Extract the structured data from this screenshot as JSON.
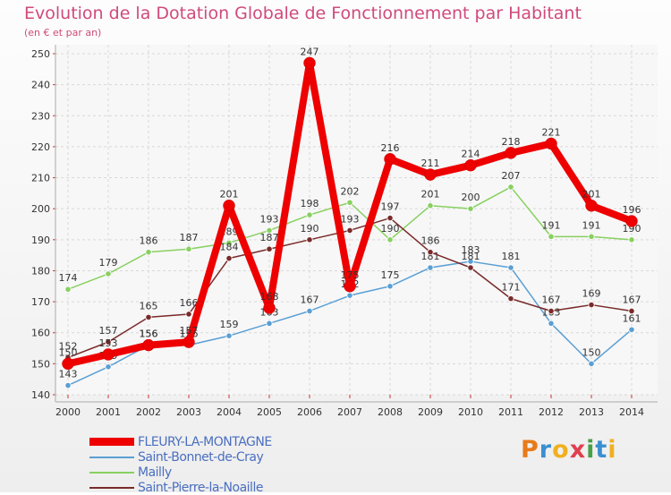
{
  "title": "Evolution de la Dotation Globale de Fonctionnement par Habitant",
  "subtitle": "(en € et par an)",
  "logo": {
    "text": "Proxiti",
    "letter_colors": [
      "#e87a1a",
      "#3a8fd0",
      "#f0b020",
      "#e04050",
      "#48a048",
      "#3a8fd0",
      "#f0b020"
    ]
  },
  "chart_data": {
    "type": "line",
    "title": "Evolution de la Dotation Globale de Fonctionnement par Habitant",
    "subtitle": "(en € et par an)",
    "xlabel": "",
    "ylabel": "",
    "categories": [
      "2000",
      "2001",
      "2002",
      "2003",
      "2004",
      "2005",
      "2006",
      "2007",
      "2008",
      "2009",
      "2010",
      "2011",
      "2012",
      "2013",
      "2014"
    ],
    "yticks": [
      140,
      150,
      160,
      170,
      180,
      190,
      200,
      210,
      220,
      230,
      240,
      250
    ],
    "ylim": [
      140,
      250
    ],
    "grid": true,
    "series": [
      {
        "name": "Saint-Bonnet-de-Cray",
        "color": "#5a9fd4",
        "style": "thin",
        "values": [
          143,
          149,
          156,
          156,
          159,
          163,
          167,
          172,
          175,
          181,
          183,
          181,
          163,
          150,
          161
        ],
        "labels": [
          "143",
          "149",
          "156",
          "156",
          "159",
          "163",
          "167",
          "172",
          "175",
          "181",
          "183",
          "181",
          "163",
          "150",
          "161"
        ]
      },
      {
        "name": "Mailly",
        "color": "#88d060",
        "style": "thin",
        "values": [
          174,
          179,
          186,
          187,
          189,
          193,
          198,
          202,
          190,
          201,
          200,
          207,
          191,
          191,
          190
        ],
        "labels": [
          "174",
          "179",
          "186",
          "187",
          "189",
          "193",
          "198",
          "202",
          "190",
          "201",
          "200",
          "207",
          "191",
          "191",
          "190"
        ]
      },
      {
        "name": "Saint-Pierre-la-Noaille",
        "color": "#7a2a2a",
        "style": "thin",
        "values": [
          152,
          157,
          165,
          166,
          184,
          187,
          190,
          193,
          197,
          186,
          181,
          171,
          167,
          169,
          167
        ],
        "labels": [
          "152",
          "157",
          "165",
          "166",
          "184",
          "187",
          "190",
          "193",
          "197",
          "186",
          "181",
          "171",
          "167",
          "169",
          "167"
        ]
      },
      {
        "name": "FLEURY-LA-MONTAGNE",
        "color": "#ee0000",
        "style": "thick",
        "values": [
          150,
          153,
          156,
          157,
          201,
          168,
          247,
          175,
          216,
          211,
          214,
          218,
          221,
          201,
          196
        ],
        "labels": [
          "150",
          "153",
          "156",
          "157",
          "201",
          "168",
          "247",
          "175",
          "216",
          "211",
          "214",
          "218",
          "221",
          "201",
          "196"
        ]
      }
    ],
    "legend": [
      "FLEURY-LA-MONTAGNE",
      "Saint-Bonnet-de-Cray",
      "Mailly",
      "Saint-Pierre-la-Noaille"
    ],
    "legend_position": "bottom-left"
  }
}
